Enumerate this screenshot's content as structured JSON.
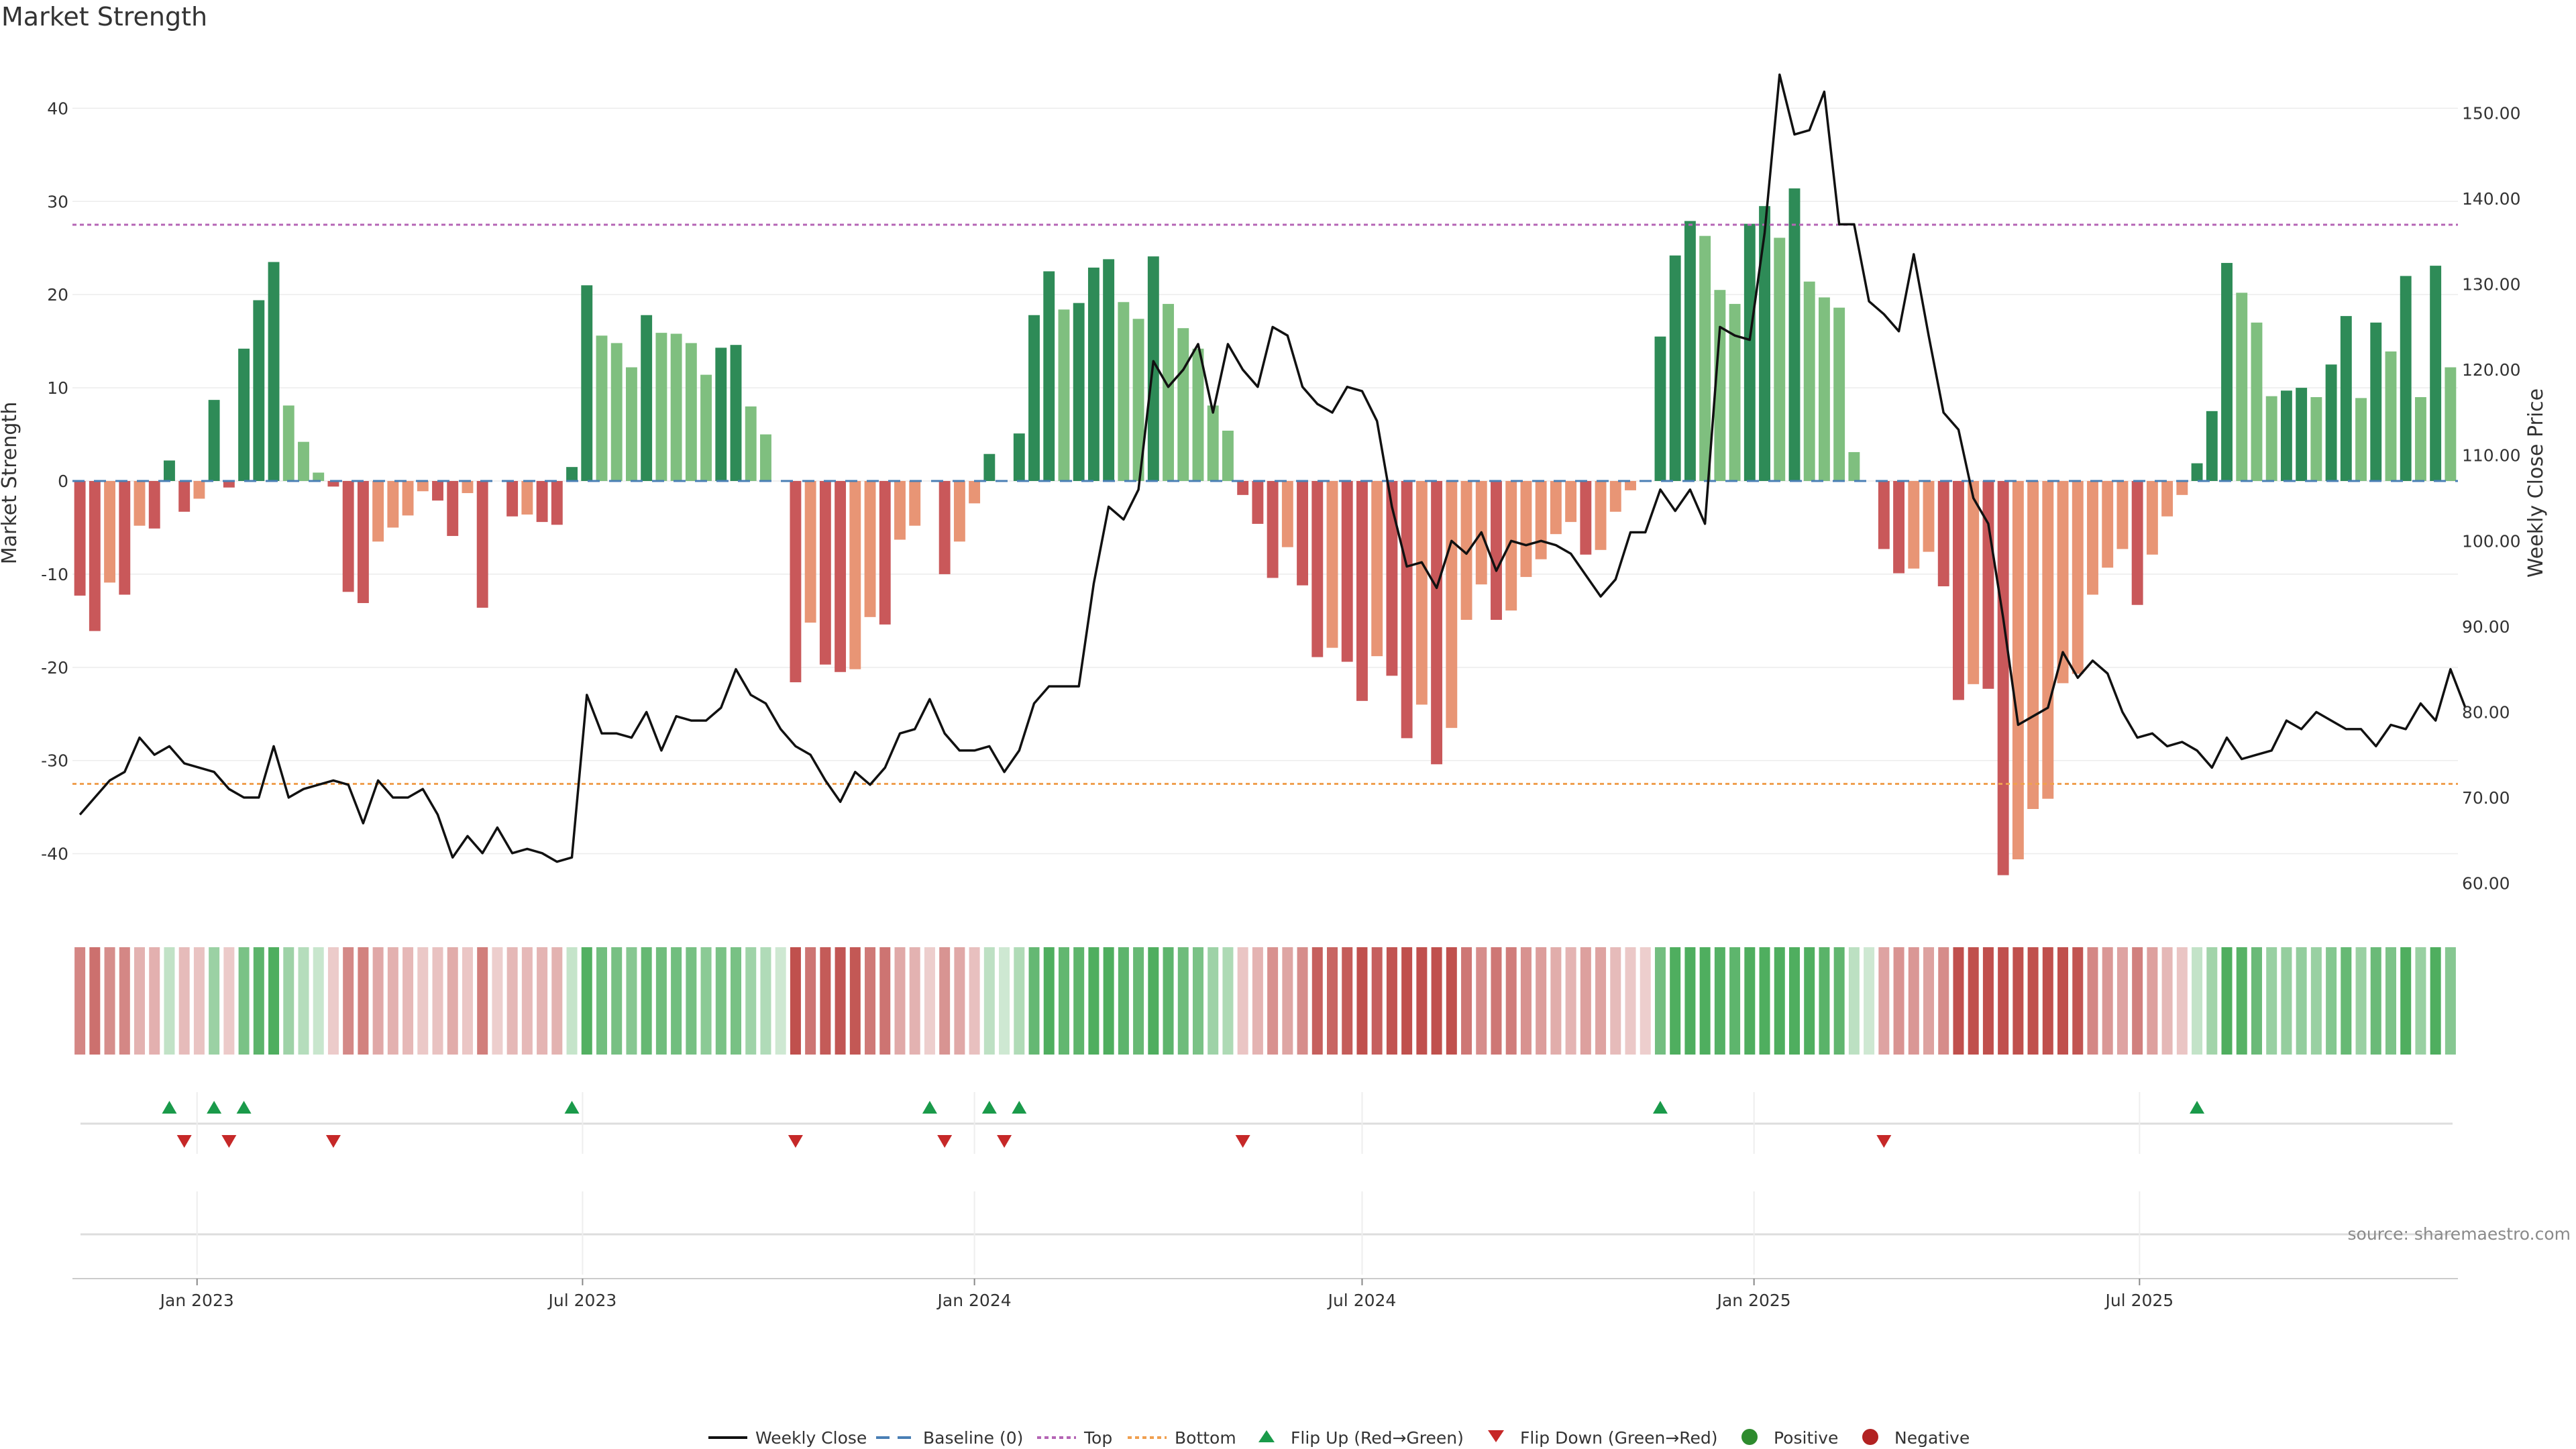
{
  "title": "Market Strength",
  "source": "source: sharemaestro.com",
  "colors": {
    "strong_green": "#2e8b57",
    "light_green": "#7fbf7f",
    "strong_red": "#c9585a",
    "light_red": "#e89575",
    "line": "#111111",
    "baseline": "#4a7fb5",
    "top": "#b565b5",
    "bottom": "#f0a050",
    "flip_up": "#1a9a4a",
    "flip_down": "#c62828",
    "positive": "#2e8b2e",
    "negative": "#b22222"
  },
  "chart_data": {
    "type": "bar",
    "title": "Market Strength",
    "ylabel_left": "Market Strength",
    "ylabel_right": "Weekly Close Price",
    "ylim_left": [
      -46,
      46
    ],
    "ylim_right": [
      56.9,
      157.1
    ],
    "yticks_left": [
      "40",
      "30",
      "20",
      "10",
      "0",
      "-10",
      "-20",
      "-30",
      "-40"
    ],
    "yticks_right": [
      "150.00",
      "140.00",
      "130.00",
      "120.00",
      "110.00",
      "100.00",
      "90.00",
      "80.00",
      "70.00",
      "60.00"
    ],
    "x_start": "2022-11-07",
    "x_ticks": [
      "Jan 2023",
      "Jul 2023",
      "Jan 2024",
      "Jul 2024",
      "Jan 2025",
      "Jul 2025"
    ],
    "top_level": 27.5,
    "bottom_level": -32.5,
    "market_strength": [
      -12.3,
      -16.1,
      -10.9,
      -12.2,
      -4.8,
      -5.1,
      2.2,
      -3.3,
      -1.9,
      8.7,
      -0.7,
      14.2,
      19.4,
      23.5,
      8.1,
      4.2,
      0.9,
      -0.6,
      -11.9,
      -13.1,
      -6.5,
      -5.0,
      -3.7,
      -1.1,
      -2.1,
      -5.9,
      -1.3,
      -13.6,
      0.0,
      -3.8,
      -3.6,
      -4.4,
      -4.7,
      1.5,
      21.0,
      15.6,
      14.8,
      12.2,
      17.8,
      15.9,
      15.8,
      14.8,
      11.4,
      14.3,
      14.6,
      8.0,
      5.0,
      0.0,
      -21.6,
      -15.2,
      -19.7,
      -20.5,
      -20.2,
      -14.6,
      -15.4,
      -6.3,
      -4.8,
      0.0,
      -10.0,
      -6.5,
      -2.4,
      2.9,
      0.0,
      5.1,
      17.8,
      22.5,
      18.4,
      19.1,
      22.9,
      23.8,
      19.2,
      17.4,
      24.1,
      19.0,
      16.4,
      14.2,
      8.1,
      5.4,
      -1.5,
      -4.6,
      -10.4,
      -7.1,
      -11.2,
      -18.9,
      -17.9,
      -19.4,
      -23.6,
      -18.8,
      -20.9,
      -27.6,
      -24.0,
      -30.4,
      -26.5,
      -14.9,
      -11.1,
      -14.9,
      -13.9,
      -10.3,
      -8.4,
      -5.7,
      -4.4,
      -7.9,
      -7.4,
      -3.3,
      -1.0,
      0.0,
      15.5,
      24.2,
      27.9,
      26.3,
      20.5,
      19.0,
      27.6,
      29.5,
      26.1,
      31.4,
      21.4,
      19.7,
      18.6,
      3.1,
      0.0,
      -7.3,
      -9.9,
      -9.4,
      -7.6,
      -11.3,
      -23.5,
      -21.8,
      -22.3,
      -42.3,
      -40.6,
      -35.2,
      -34.1,
      -21.7,
      -20.7,
      -12.2,
      -9.3,
      -7.3,
      -13.3,
      -7.9,
      -3.8,
      -1.5,
      1.9,
      7.5,
      23.4,
      20.2,
      17.0,
      9.1,
      9.7,
      10.0,
      9.0,
      12.5,
      17.7,
      8.9,
      17.0,
      13.9,
      22.0,
      9.0,
      23.1,
      12.2
    ],
    "weekly_close": [
      68.0,
      70.0,
      72.0,
      73.0,
      77.0,
      75.0,
      76.0,
      74.0,
      73.5,
      73.0,
      71.0,
      70.0,
      70.0,
      76.0,
      70.0,
      71.0,
      71.5,
      72.0,
      71.5,
      67.0,
      72.0,
      70.0,
      70.0,
      71.0,
      68.0,
      63.0,
      65.5,
      63.5,
      66.5,
      63.5,
      64.0,
      63.5,
      62.5,
      63.0,
      82.0,
      77.5,
      77.5,
      77.0,
      80.0,
      75.5,
      79.5,
      79.0,
      79.0,
      80.5,
      85.0,
      82.0,
      81.0,
      78.0,
      76.0,
      75.0,
      72.0,
      69.5,
      73.0,
      71.5,
      73.5,
      77.5,
      78.0,
      81.5,
      77.5,
      75.5,
      75.5,
      76.0,
      73.0,
      75.5,
      81.0,
      83.0,
      83.0,
      83.0,
      95.0,
      104.0,
      102.5,
      106.0,
      121.0,
      118.0,
      120.0,
      123.0,
      115.0,
      123.0,
      120.0,
      118.0,
      125.0,
      124.0,
      118.0,
      116.0,
      115.0,
      118.0,
      117.5,
      114.0,
      104.0,
      97.0,
      97.5,
      94.5,
      100.0,
      98.5,
      101.0,
      96.5,
      100.0,
      99.5,
      100.0,
      99.5,
      98.5,
      96.0,
      93.5,
      95.5,
      101.0,
      101.0,
      106.0,
      103.5,
      106.0,
      102.0,
      125.0,
      124.0,
      123.5,
      136.0,
      154.5,
      147.5,
      148.0,
      152.5,
      137.0,
      137.0,
      128.0,
      126.5,
      124.5,
      133.5,
      124.0,
      115.0,
      113.0,
      105.0,
      102.0,
      91.0,
      78.5,
      79.5,
      80.5,
      87.0,
      84.0,
      86.0,
      84.5,
      80.0,
      77.0,
      77.5,
      76.0,
      76.5,
      75.5,
      73.5,
      77.0,
      74.5,
      75.0,
      75.5,
      79.0,
      78.0,
      80.0,
      79.0,
      78.0,
      78.0,
      76.0,
      78.5,
      78.0,
      81.0,
      79.0,
      85.0,
      80.5
    ],
    "flip_up_weeks": [
      6,
      9,
      11,
      33,
      57,
      61,
      63,
      106,
      142
    ],
    "flip_down_weeks": [
      7,
      10,
      17,
      48,
      58,
      62,
      78,
      121
    ],
    "legend": [
      "Weekly Close",
      "Baseline (0)",
      "Top",
      "Bottom",
      "Flip Up (Red→Green)",
      "Flip Down (Green→Red)",
      "Positive",
      "Negative"
    ]
  }
}
